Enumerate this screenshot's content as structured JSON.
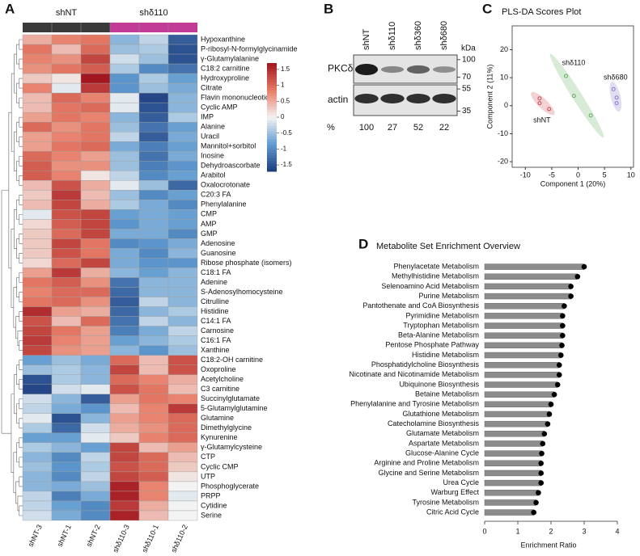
{
  "chart_data": [
    {
      "panel": "A",
      "type": "heatmap",
      "columns": [
        "shNT-3",
        "shNT-1",
        "shNT-2",
        "shδ110-3",
        "shδ110-1",
        "shδ110-2"
      ],
      "groups": [
        {
          "name": "shNT",
          "color": "#3a3a3a"
        },
        {
          "name": "shδ110",
          "color": "#c23b97"
        }
      ],
      "column_groups": [
        0,
        0,
        0,
        1,
        1,
        1
      ],
      "rows": [
        "Hypoxanthine",
        "P-ribosyl-N-formylglycinamide",
        "γ-Glutamylalanine",
        "C18:2 carnitine",
        "Hydroxyproline",
        "Citrate",
        "Flavin mononucleotide",
        "Cyclic AMP",
        "IMP",
        "Alanine",
        "Uracil",
        "Mannitol+sorbitol",
        "Inosine",
        "Dehydroascorbate",
        "Arabitol",
        "Oxalocrotonate",
        "C20:3 FA",
        "Phenylalanine",
        "CMP",
        "AMP",
        "GMP",
        "Adenosine",
        "Guanosine",
        "Ribose phosphate (isomers)",
        "C18:1 FA",
        "Adenine",
        "S-Adenosylhomocysteine",
        "Citrulline",
        "Histidine",
        "C14:1 FA",
        "Carnosine",
        "C16:1 FA",
        "Xanthine",
        "C18:2-OH carnitine",
        "Oxoproline",
        "Acetylcholine",
        "C3 carnitine",
        "Succinylglutamate",
        "5-Glutamylglutamine",
        "Glutamine",
        "Dimethylglycine",
        "Kynurenine",
        "γ-Glutamylcysteine",
        "CTP",
        "Cyclic CMP",
        "UTP",
        "Phosphoglycerate",
        "PRPP",
        "Cytidine",
        "Serine"
      ],
      "values": [
        [
          0.5,
          0.8,
          0.9,
          -0.6,
          -0.3,
          -1.4
        ],
        [
          0.9,
          0.4,
          1.0,
          -0.5,
          -0.4,
          -1.5
        ],
        [
          0.8,
          0.7,
          1.3,
          -0.2,
          -0.5,
          -1.5
        ],
        [
          0.7,
          0.9,
          1.1,
          -0.4,
          -1.0,
          -1.2
        ],
        [
          0.3,
          0.1,
          1.7,
          -0.9,
          -0.4,
          -0.8
        ],
        [
          0.8,
          -0.1,
          1.4,
          -0.9,
          -0.5,
          -0.7
        ],
        [
          0.4,
          1.0,
          0.8,
          -0.1,
          -1.6,
          -0.6
        ],
        [
          0.4,
          0.9,
          1.0,
          -0.1,
          -1.5,
          -0.6
        ],
        [
          0.6,
          0.9,
          0.8,
          -0.6,
          -1.4,
          -0.4
        ],
        [
          1.0,
          0.7,
          0.9,
          -0.5,
          -1.2,
          -0.8
        ],
        [
          0.6,
          0.8,
          0.9,
          -0.3,
          -1.4,
          -0.7
        ],
        [
          0.6,
          0.9,
          1.0,
          -0.7,
          -1.1,
          -0.8
        ],
        [
          1.0,
          0.8,
          0.6,
          -0.5,
          -1.2,
          -0.7
        ],
        [
          1.1,
          0.7,
          0.7,
          -0.5,
          -1.1,
          -0.9
        ],
        [
          1.1,
          0.8,
          0.1,
          -0.3,
          -1.0,
          -0.8
        ],
        [
          0.4,
          1.2,
          0.5,
          -0.1,
          -0.5,
          -1.3
        ],
        [
          0.3,
          1.4,
          0.4,
          -0.5,
          -1.0,
          -0.8
        ],
        [
          0.4,
          1.3,
          0.5,
          -0.4,
          -0.7,
          -1.0
        ],
        [
          -0.1,
          1.2,
          1.3,
          -0.8,
          -0.7,
          -0.8
        ],
        [
          0.2,
          1.1,
          1.3,
          -0.9,
          -0.7,
          -0.8
        ],
        [
          0.3,
          1.0,
          1.3,
          -0.7,
          -0.7,
          -1.0
        ],
        [
          0.3,
          1.3,
          0.9,
          -1.0,
          -0.9,
          -0.7
        ],
        [
          0.3,
          1.2,
          0.9,
          -0.7,
          -1.0,
          -0.6
        ],
        [
          0.2,
          1.0,
          1.3,
          -0.7,
          -0.9,
          -0.9
        ],
        [
          0.6,
          1.4,
          0.5,
          -0.6,
          -0.8,
          -0.6
        ],
        [
          0.9,
          1.1,
          0.7,
          -1.2,
          -0.6,
          -0.6
        ],
        [
          0.8,
          1.0,
          1.0,
          -1.3,
          -0.6,
          -0.6
        ],
        [
          0.9,
          1.0,
          0.7,
          -1.4,
          -0.3,
          -0.6
        ],
        [
          1.5,
          0.6,
          0.5,
          -1.3,
          -0.6,
          -0.4
        ],
        [
          1.2,
          0.4,
          1.0,
          -1.2,
          -0.3,
          -0.6
        ],
        [
          1.3,
          0.9,
          0.6,
          -1.1,
          -0.7,
          -0.3
        ],
        [
          1.4,
          0.8,
          0.6,
          -0.8,
          -0.6,
          -0.4
        ],
        [
          1.3,
          0.7,
          0.6,
          -0.6,
          -0.9,
          -0.5
        ],
        [
          -0.8,
          -0.5,
          -0.7,
          1.0,
          0.4,
          1.2
        ],
        [
          -0.5,
          -0.4,
          -0.6,
          1.3,
          0.4,
          1.2
        ],
        [
          -1.5,
          -0.4,
          -0.6,
          1.0,
          0.8,
          0.5
        ],
        [
          -1.6,
          -0.2,
          -0.1,
          1.2,
          0.9,
          0.4
        ],
        [
          -0.2,
          -0.6,
          -1.4,
          0.6,
          0.9,
          0.8
        ],
        [
          -0.3,
          -0.7,
          -0.9,
          0.4,
          0.8,
          1.4
        ],
        [
          -0.1,
          -1.5,
          -0.6,
          0.6,
          0.8,
          1.0
        ],
        [
          -0.4,
          -1.3,
          -0.2,
          0.5,
          0.7,
          1.0
        ],
        [
          -0.8,
          -0.8,
          -0.1,
          0.3,
          0.8,
          1.0
        ],
        [
          -0.4,
          -0.6,
          -0.8,
          1.3,
          0.4,
          0.6
        ],
        [
          -0.6,
          -1.0,
          -0.3,
          1.3,
          1.0,
          0.4
        ],
        [
          -0.5,
          -0.9,
          -0.4,
          1.2,
          1.0,
          0.3
        ],
        [
          -0.6,
          -1.0,
          -0.3,
          1.3,
          1.1,
          0.1
        ],
        [
          -0.6,
          -0.7,
          -0.5,
          1.6,
          0.8,
          0.0
        ],
        [
          -0.3,
          -1.1,
          -0.7,
          1.6,
          0.8,
          -0.1
        ],
        [
          -0.3,
          -0.8,
          -1.0,
          1.4,
          0.5,
          0.0
        ],
        [
          -0.2,
          -0.7,
          -1.0,
          1.6,
          0.4,
          0.0
        ]
      ],
      "clim": [
        -1.7,
        1.7
      ],
      "cticks": [
        1.5,
        1,
        0.5,
        0,
        -0.5,
        -1,
        -1.5
      ],
      "colors": [
        "#1d3b7d",
        "#5f9bd0",
        "#f3f3f3",
        "#e67c66",
        "#a1161f"
      ]
    },
    {
      "panel": "B",
      "type": "blot",
      "lanes": [
        "shNT",
        "shδ110",
        "shδ360",
        "shδ680"
      ],
      "rows": [
        "PKCδ",
        "actin"
      ],
      "unit_label": "kDa",
      "yticks": [
        100,
        70,
        55,
        35
      ],
      "ylim": [
        110,
        32
      ],
      "log_scale": true,
      "quant_label": "%",
      "values": [
        100,
        27,
        52,
        22
      ]
    },
    {
      "panel": "C",
      "type": "scatter",
      "title": "PLS-DA Scores Plot",
      "xlabel": "Component 1 (20%)",
      "ylabel": "Component 2 (11%)",
      "xlim": [
        -12.5,
        10.5
      ],
      "ylim": [
        -22,
        28.5
      ],
      "xticks": [
        -10,
        -5,
        0,
        5,
        10
      ],
      "yticks": [
        -20,
        -10,
        0,
        10,
        20
      ],
      "series": [
        {
          "name": "shNT",
          "color": "#d04a55",
          "x": [
            -7.3,
            -7.3,
            -5.5
          ],
          "y": [
            2.6,
            0.9,
            -1.2
          ]
        },
        {
          "name": "shδ110",
          "color": "#5fae5a",
          "x": [
            -2.3,
            -0.8,
            2.4
          ],
          "y": [
            10.6,
            3.5,
            -3.5
          ]
        },
        {
          "name": "shδ680",
          "color": "#8b7bc8",
          "x": [
            6.7,
            7.3,
            7.3
          ],
          "y": [
            5.9,
            2.9,
            0.9
          ]
        }
      ]
    },
    {
      "panel": "D",
      "type": "bar",
      "orientation": "horizontal",
      "title": "Metabolite Set Enrichment Overview",
      "xlabel": "Enrichment Ratio",
      "xlim": [
        0,
        4
      ],
      "xticks": [
        0,
        1,
        2,
        3,
        4
      ],
      "color": "#8c8c8c",
      "categories": [
        "Phenylacetate Metabolism",
        "Methylhistidine Metabolism",
        "Selenoamino Acid Metabolism",
        "Purine Metabolism",
        "Pantothenate and CoA Biosynthesis",
        "Pyrimidine Metabolism",
        "Tryptophan Metabolism",
        "Beta-Alanine Metabolism",
        "Pentose Phosphate Pathway",
        "Histidine Metabolism",
        "Phosphatidylcholine Biosynthesis",
        "Nicotinate and Nicotinamide Metabolism",
        "Ubiquinone Biosynthesis",
        "Betaine Metabolism",
        "Phenylalanine and Tyrosine Metabolism",
        "Glutathione Metabolism",
        "Catecholamine Biosynthesis",
        "Glutamate Metabolism",
        "Aspartate Metabolism",
        "Glucose-Alanine Cycle",
        "Arginine and Proline Metabolism",
        "Glycine and Serine Metabolism",
        "Urea Cycle",
        "Warburg Effect",
        "Tyrosine Metabolism",
        "Citric Acid Cycle"
      ],
      "values": [
        3.0,
        2.8,
        2.6,
        2.6,
        2.4,
        2.35,
        2.35,
        2.35,
        2.33,
        2.3,
        2.25,
        2.25,
        2.2,
        2.1,
        2.0,
        1.95,
        1.9,
        1.8,
        1.75,
        1.72,
        1.7,
        1.7,
        1.7,
        1.62,
        1.55,
        1.48
      ]
    }
  ]
}
